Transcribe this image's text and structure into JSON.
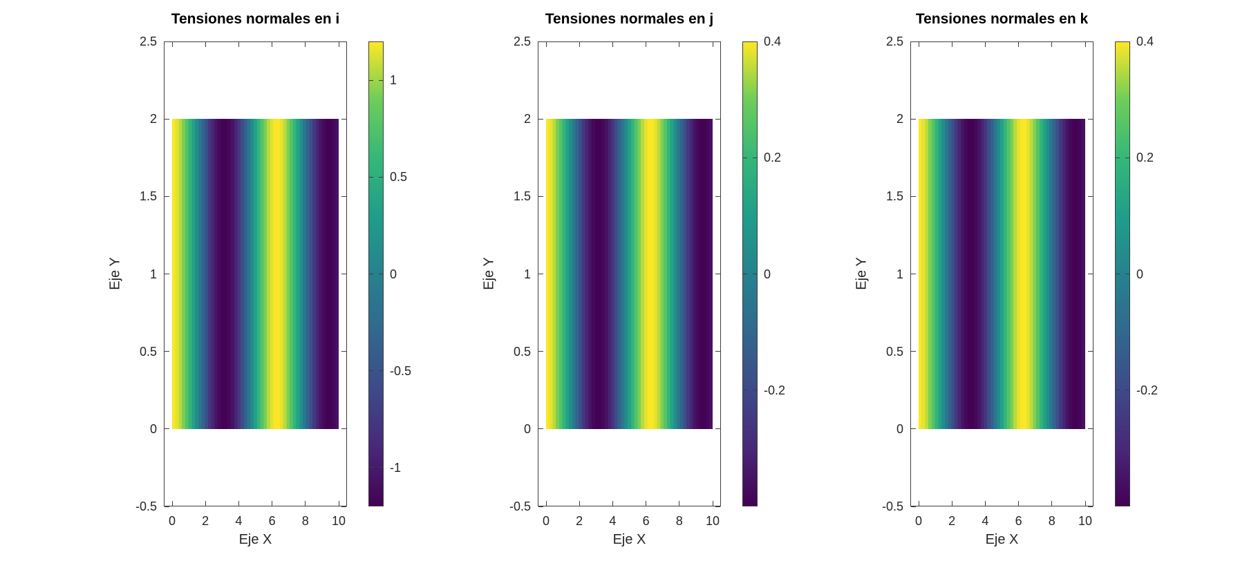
{
  "figure": {
    "background": "#ffffff",
    "colormap": "viridis",
    "colormap_stops": [
      "#440154",
      "#482878",
      "#3e4a89",
      "#31688e",
      "#26828e",
      "#1f9e89",
      "#35b779",
      "#6dcd59",
      "#fde725"
    ]
  },
  "chart_data": [
    {
      "type": "heatmap",
      "title": "Tensiones normales en i",
      "xlabel": "Eje X",
      "ylabel": "Eje Y",
      "xlim": [
        -0.5,
        10.5
      ],
      "ylim": [
        -0.5,
        2.5
      ],
      "xticks": [
        0,
        2,
        4,
        6,
        8,
        10
      ],
      "xtick_labels": [
        "0",
        "2",
        "4",
        "6",
        "8",
        "10"
      ],
      "yticks": [
        -0.5,
        0,
        0.5,
        1,
        1.5,
        2,
        2.5
      ],
      "ytick_labels": [
        "-0.5",
        "0",
        "0.5",
        "1",
        "1.5",
        "2",
        "2.5"
      ],
      "field": {
        "description": "vertical stripe field, sigma(x) = amplitude * cos(x), uniform along y",
        "amplitude": 1.2,
        "x_extent": [
          0,
          10
        ],
        "y_extent": [
          0,
          2
        ],
        "n_columns": 51
      },
      "clim": [
        -1.2,
        1.2
      ],
      "colorbar_ticks": [
        {
          "value": 1,
          "label": "1"
        },
        {
          "value": 0.5,
          "label": "0.5"
        },
        {
          "value": 0,
          "label": "0"
        },
        {
          "value": -0.5,
          "label": "-0.5"
        },
        {
          "value": -1,
          "label": "-1"
        }
      ],
      "grid": false,
      "legend": "colorbar-right"
    },
    {
      "type": "heatmap",
      "title": "Tensiones normales en j",
      "xlabel": "Eje X",
      "ylabel": "Eje Y",
      "xlim": [
        -0.5,
        10.5
      ],
      "ylim": [
        -0.5,
        2.5
      ],
      "xticks": [
        0,
        2,
        4,
        6,
        8,
        10
      ],
      "xtick_labels": [
        "0",
        "2",
        "4",
        "6",
        "8",
        "10"
      ],
      "yticks": [
        -0.5,
        0,
        0.5,
        1,
        1.5,
        2,
        2.5
      ],
      "ytick_labels": [
        "-0.5",
        "0",
        "0.5",
        "1",
        "1.5",
        "2",
        "2.5"
      ],
      "field": {
        "description": "vertical stripe field, sigma(x) = amplitude * cos(x), uniform along y",
        "amplitude": 0.4,
        "x_extent": [
          0,
          10
        ],
        "y_extent": [
          0,
          2
        ],
        "n_columns": 51
      },
      "clim": [
        -0.4,
        0.4
      ],
      "colorbar_ticks": [
        {
          "value": 0.4,
          "label": "0.4"
        },
        {
          "value": 0.2,
          "label": "0.2"
        },
        {
          "value": 0,
          "label": "0"
        },
        {
          "value": -0.2,
          "label": "-0.2"
        }
      ],
      "grid": false,
      "legend": "colorbar-right"
    },
    {
      "type": "heatmap",
      "title": "Tensiones normales en k",
      "xlabel": "Eje X",
      "ylabel": "Eje Y",
      "xlim": [
        -0.5,
        10.5
      ],
      "ylim": [
        -0.5,
        2.5
      ],
      "xticks": [
        0,
        2,
        4,
        6,
        8,
        10
      ],
      "xtick_labels": [
        "0",
        "2",
        "4",
        "6",
        "8",
        "10"
      ],
      "yticks": [
        -0.5,
        0,
        0.5,
        1,
        1.5,
        2,
        2.5
      ],
      "ytick_labels": [
        "-0.5",
        "0",
        "0.5",
        "1",
        "1.5",
        "2",
        "2.5"
      ],
      "field": {
        "description": "vertical stripe field, sigma(x) = amplitude * cos(x), uniform along y",
        "amplitude": 0.4,
        "x_extent": [
          0,
          10
        ],
        "y_extent": [
          0,
          2
        ],
        "n_columns": 51
      },
      "clim": [
        -0.4,
        0.4
      ],
      "colorbar_ticks": [
        {
          "value": 0.4,
          "label": "0.4"
        },
        {
          "value": 0.2,
          "label": "0.2"
        },
        {
          "value": 0,
          "label": "0"
        },
        {
          "value": -0.2,
          "label": "-0.2"
        }
      ],
      "grid": false,
      "legend": "colorbar-right"
    }
  ]
}
